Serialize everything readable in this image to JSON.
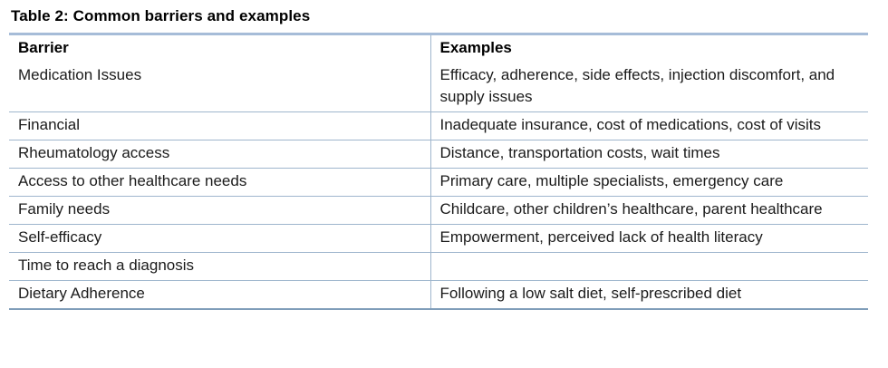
{
  "table": {
    "title": "Table 2: Common barriers and examples",
    "columns": {
      "barrier": "Barrier",
      "examples": "Examples"
    },
    "rows": [
      {
        "barrier": "Medication Issues",
        "examples": "Efficacy, adherence, side effects, injection discomfort, and supply issues"
      },
      {
        "barrier": "Financial",
        "examples": "Inadequate insurance, cost of medications, cost of visits"
      },
      {
        "barrier": "Rheumatology access",
        "examples": "Distance, transportation costs, wait times"
      },
      {
        "barrier": "Access to other healthcare needs",
        "examples": "Primary care, multiple specialists, emergency care"
      },
      {
        "barrier": "Family needs",
        "examples": "Childcare, other children’s healthcare, parent healthcare"
      },
      {
        "barrier": "Self-efficacy",
        "examples": "Empowerment, perceived lack of health literacy"
      },
      {
        "barrier": "Time to reach a diagnosis",
        "examples": ""
      },
      {
        "barrier": "Dietary Adherence",
        "examples": "Following a low salt diet, self-prescribed diet"
      }
    ],
    "colors": {
      "border_top": "#a6bcd8",
      "border_inner": "#9fb6cd",
      "border_bottom": "#7f9db9",
      "text": "#1b1b1b"
    }
  }
}
